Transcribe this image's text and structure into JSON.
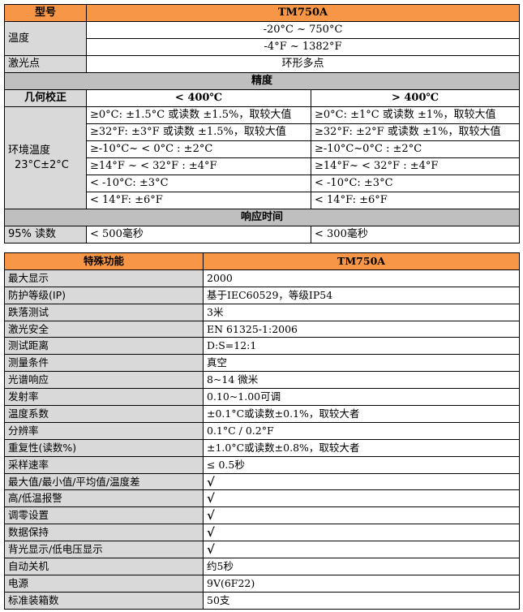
{
  "table1": {
    "header": {
      "label": "型号",
      "model": "TM750A"
    },
    "temperature": {
      "label": "温度",
      "values": [
        "-20°C ~ 750°C",
        "-4°F ~ 1382°F"
      ]
    },
    "laser": {
      "label": "激光点",
      "value": "环形多点"
    },
    "accuracy": {
      "title": "精度",
      "geo_label": "几何校正",
      "col_low": "< 400℃",
      "col_high": "> 400℃",
      "env_label": "环境温度",
      "env_value": "23°C±2°C",
      "rows": [
        [
          "≥0°C: ±1.5°C 或读数 ±1.5%，取较大值",
          "≥0°C: ±1°C 或读数 ±1%，取较大值"
        ],
        [
          "≥32°F: ±3°F 或读数 ±1.5%，取较大值",
          "≥32°F: ±2°F 或读数 ±1%，取较大值"
        ],
        [
          "≥-10°C~ < 0°C : ±2°C",
          "≥-10°C~0°C : ±2°C"
        ],
        [
          "≥14°F ~ < 32°F : ±4°F",
          "≥14°F~ < 32°F : ±4°F"
        ],
        [
          "< -10°C: ±3°C",
          "< -10°C: ±3°C"
        ],
        [
          "< 14°F: ±6°F",
          "< 14°F: ±6°F"
        ]
      ]
    },
    "response": {
      "title": "响应时间",
      "label": "95% 读数",
      "low": "< 500毫秒",
      "high": "< 300毫秒"
    }
  },
  "table2": {
    "header": {
      "label": "特殊功能",
      "model": "TM750A"
    },
    "rows": [
      [
        "最大显示",
        "2000"
      ],
      [
        "防护等级(IP)",
        "基于IEC60529，等级IP54"
      ],
      [
        "跌落测试",
        "3米"
      ],
      [
        "激光安全",
        "EN 61325-1:2006"
      ],
      [
        "测试距离",
        "D:S=12:1"
      ],
      [
        "测量条件",
        "真空"
      ],
      [
        "光谱响应",
        "8~14 微米"
      ],
      [
        "发射率",
        "0.10~1.00可调"
      ],
      [
        "温度系数",
        "±0.1°C或读数±0.1%，取较大者"
      ],
      [
        "分辨率",
        " 0.1°C / 0.2°F"
      ],
      [
        "重复性(读数%)",
        "±1.0°C或读数±0.8%，取较大者"
      ],
      [
        "采样速率",
        "≤ 0.5秒"
      ],
      [
        "最大值/最小值/平均值/温度差",
        "√"
      ],
      [
        "高/低温报警",
        "√"
      ],
      [
        "调零设置",
        "√"
      ],
      [
        "数据保持",
        "√"
      ],
      [
        "背光显示/低电压显示",
        "√"
      ],
      [
        "自动关机",
        "约5秒"
      ],
      [
        "电源",
        "9V(6F22)"
      ],
      [
        "标准装箱数",
        "50支"
      ]
    ]
  }
}
